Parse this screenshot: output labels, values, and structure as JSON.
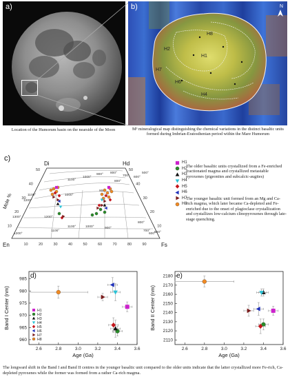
{
  "panel_a": {
    "letter": "a)",
    "caption": "Location of the Humorum basin on the nearside of the Moon"
  },
  "panel_b": {
    "letter": "b)",
    "north": "N",
    "unit_labels": [
      "H8",
      "H2",
      "H1",
      "H7",
      "H6",
      "H4"
    ],
    "caption": "M³ mineralogical map distinguishing the chemical variations in the distinct basaltic units formed during Imbrian-Eratosthenian period within the Mare Humorum"
  },
  "panel_c": {
    "letter": "c)",
    "apex_left": "Di",
    "apex_right": "Hd",
    "base_left": "En",
    "base_right": "Fs",
    "side_label": "Mole %",
    "top_ticks": [
      "50",
      "40",
      "30",
      "20",
      "10"
    ],
    "bottom_ticks": [
      "10",
      "20",
      "30",
      "40",
      "50",
      "60",
      "70",
      "80",
      "90"
    ],
    "left_ticks": [
      "50",
      "40",
      "30",
      "20",
      "10"
    ],
    "isotherms": [
      "1100°",
      "1200°",
      "1000°",
      "900°",
      "800°",
      "700°",
      "600°",
      "500°",
      "1100°",
      "1000°",
      "900°",
      "800°",
      "1300°",
      "1200°",
      "1100°",
      "1000°",
      "900°",
      "800°",
      "700°",
      "600°",
      "500°",
      "1200°",
      "1100°"
    ],
    "legend": [
      {
        "name": "H1",
        "color": "#cc22cc",
        "shape": "square"
      },
      {
        "name": "H2",
        "color": "#2a8c2a",
        "shape": "circle"
      },
      {
        "name": "H3",
        "color": "#111111",
        "shape": "triangle-up"
      },
      {
        "name": "H4",
        "color": "#2bc3d6",
        "shape": "triangle-down"
      },
      {
        "name": "H5",
        "color": "#c4161c",
        "shape": "diamond"
      },
      {
        "name": "H6",
        "color": "#2233bb",
        "shape": "triangle-left"
      },
      {
        "name": "H7",
        "color": "#7a1b1b",
        "shape": "triangle-right"
      },
      {
        "name": "H8",
        "color": "#f08a24",
        "shape": "circle"
      }
    ],
    "text_older": "The older basaltic units crystallized from a Fe-enriched fractionated magma and crystallized metastable pyroxenes (pigeonites and subcalcic-augites)",
    "text_younger": "The younger basaltic unit formed from an Mg and Ca-rich magma, which later became Ca-depleted and Fe-enriched due to the onset of plagioclase crystallization and crystallizes low-calcium clinopyroxenes through late-stage quenching."
  },
  "chart_data": [
    {
      "type": "scatter",
      "panel": "d)",
      "xlabel": "Age (Ga)",
      "ylabel": "Band I Center (nm)",
      "xlim": [
        2.5,
        3.6
      ],
      "ylim": [
        958,
        988
      ],
      "xticks": [
        "2.6",
        "2.8",
        "3.0",
        "3.2",
        "3.4",
        "3.6"
      ],
      "yticks": [
        "960",
        "965",
        "970",
        "975",
        "980",
        "985"
      ],
      "legend_position": "bottom-left",
      "series": [
        {
          "name": "H1",
          "color": "#cc22cc",
          "shape": "square",
          "x": 3.5,
          "y": 973.5,
          "xerr": 0.05,
          "yerr": 2.0
        },
        {
          "name": "H2",
          "color": "#2a8c2a",
          "shape": "circle",
          "x": 3.4,
          "y": 963.5,
          "xerr": 0.05,
          "yerr": 2.0
        },
        {
          "name": "H3",
          "color": "#111111",
          "shape": "triangle-up",
          "x": 3.38,
          "y": 964.5,
          "xerr": 0.05,
          "yerr": 3.5
        },
        {
          "name": "H4",
          "color": "#2bc3d6",
          "shape": "triangle-down",
          "x": 3.38,
          "y": 979.5,
          "xerr": 0.05,
          "yerr": 3.5
        },
        {
          "name": "H5",
          "color": "#c4161c",
          "shape": "diamond",
          "x": 3.36,
          "y": 966.0,
          "xerr": 0.05,
          "yerr": 3.0
        },
        {
          "name": "H6",
          "color": "#2233bb",
          "shape": "triangle-left",
          "x": 3.35,
          "y": 982.5,
          "xerr": 0.05,
          "yerr": 3.0
        },
        {
          "name": "H7",
          "color": "#7a1b1b",
          "shape": "triangle-right",
          "x": 3.25,
          "y": 977.5,
          "xerr": 0.05,
          "yerr": 1.5
        },
        {
          "name": "H8",
          "color": "#f08a24",
          "shape": "circle",
          "x": 2.8,
          "y": 979.5,
          "xerr": 0.3,
          "yerr": 2.5
        }
      ]
    },
    {
      "type": "scatter",
      "panel": "e)",
      "xlabel": "Age (Ga)",
      "ylabel": "Band II Center (nm)",
      "xlim": [
        2.5,
        3.6
      ],
      "ylim": [
        2105,
        2185
      ],
      "xticks": [
        "2.6",
        "2.8",
        "3.0",
        "3.2",
        "3.4",
        "3.6"
      ],
      "yticks": [
        "2110",
        "2120",
        "2130",
        "2140",
        "2150",
        "2160",
        "2170",
        "2180"
      ],
      "series": [
        {
          "name": "H1",
          "color": "#cc22cc",
          "shape": "square",
          "x": 3.5,
          "y": 2142,
          "xerr": 0.05,
          "yerr": 5
        },
        {
          "name": "H2",
          "color": "#2a8c2a",
          "shape": "circle",
          "x": 3.4,
          "y": 2127,
          "xerr": 0.05,
          "yerr": 6
        },
        {
          "name": "H3",
          "color": "#111111",
          "shape": "triangle-up",
          "x": 3.4,
          "y": 2162,
          "xerr": 0.05,
          "yerr": 4
        },
        {
          "name": "H4",
          "color": "#2bc3d6",
          "shape": "triangle-down",
          "x": 3.38,
          "y": 2162,
          "xerr": 0.05,
          "yerr": 4
        },
        {
          "name": "H5",
          "color": "#c4161c",
          "shape": "diamond",
          "x": 3.37,
          "y": 2125,
          "xerr": 0.05,
          "yerr": 8
        },
        {
          "name": "H6",
          "color": "#2233bb",
          "shape": "triangle-left",
          "x": 3.35,
          "y": 2144,
          "xerr": 0.05,
          "yerr": 7
        },
        {
          "name": "H7",
          "color": "#7a1b1b",
          "shape": "triangle-right",
          "x": 3.25,
          "y": 2142,
          "xerr": 0.05,
          "yerr": 6
        },
        {
          "name": "H8",
          "color": "#f08a24",
          "shape": "circle",
          "x": 2.8,
          "y": 2174,
          "xerr": 0.3,
          "yerr": 6
        }
      ]
    }
  ],
  "bottom_caption": "The longward shift in the Band I and Band II centres in the younger basaltic unit compared to the older units indicate that the latter crystallized more Fe-rich, Ca-depleted pyroxenes while the former was formed from a rather Ca-rich magma."
}
